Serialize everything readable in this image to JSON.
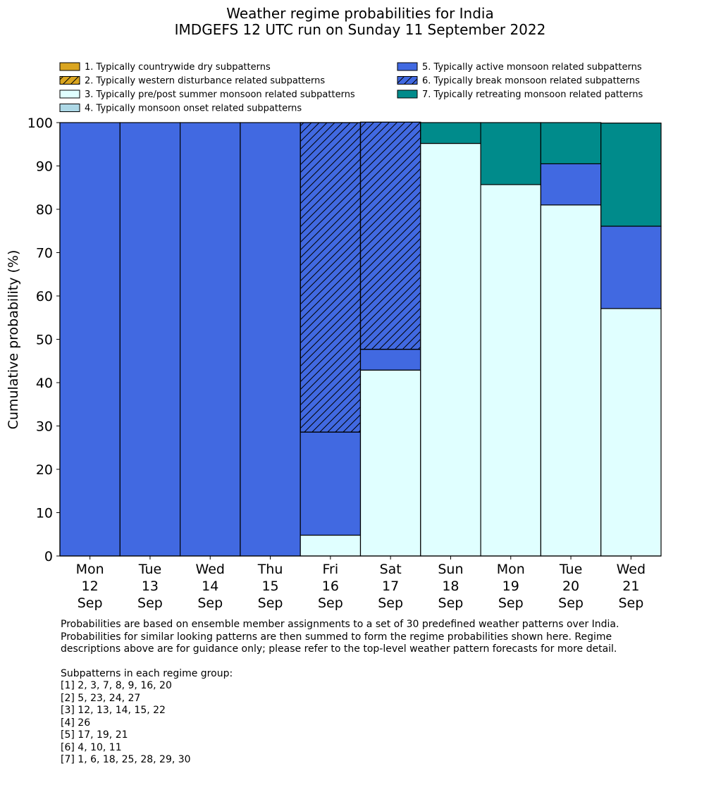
{
  "chart_data": {
    "type": "bar",
    "stacked": true,
    "title": "Weather regime probabilities for India",
    "subtitle": "IMDGEFS 12 UTC run on Sunday 11 September 2022",
    "xlabel": "",
    "ylabel": "Cumulative probability (%)",
    "ylim": [
      0,
      100
    ],
    "yticks": [
      0,
      10,
      20,
      30,
      40,
      50,
      60,
      70,
      80,
      90,
      100
    ],
    "categories": [
      [
        "Mon",
        "12",
        "Sep"
      ],
      [
        "Tue",
        "13",
        "Sep"
      ],
      [
        "Wed",
        "14",
        "Sep"
      ],
      [
        "Thu",
        "15",
        "Sep"
      ],
      [
        "Fri",
        "16",
        "Sep"
      ],
      [
        "Sat",
        "17",
        "Sep"
      ],
      [
        "Sun",
        "18",
        "Sep"
      ],
      [
        "Mon",
        "19",
        "Sep"
      ],
      [
        "Tue",
        "20",
        "Sep"
      ],
      [
        "Wed",
        "21",
        "Sep"
      ]
    ],
    "legend_position": "top",
    "series": [
      {
        "name": "1. Typically countrywide dry subpatterns",
        "color": "#DAA520",
        "hatch": false,
        "values": [
          0,
          0,
          0,
          0,
          0,
          0,
          0,
          0,
          0,
          0
        ]
      },
      {
        "name": "2. Typically western disturbance related subpatterns",
        "color": "#DAA520",
        "hatch": true,
        "values": [
          0,
          0,
          0,
          0,
          0,
          0,
          0,
          0,
          0,
          0
        ]
      },
      {
        "name": "3. Typically pre/post summer monsoon related subpatterns",
        "color": "#E0FFFF",
        "hatch": false,
        "values": [
          0,
          0,
          0,
          0,
          4.8,
          42.9,
          95.2,
          85.7,
          81.0,
          57.1
        ]
      },
      {
        "name": "4. Typically monsoon onset related subpatterns",
        "color": "#ADD8E6",
        "hatch": false,
        "values": [
          0,
          0,
          0,
          0,
          0,
          0,
          0,
          0,
          0,
          0
        ]
      },
      {
        "name": "5. Typically active monsoon related subpatterns",
        "color": "#4169E1",
        "hatch": false,
        "values": [
          100,
          100,
          100,
          100,
          23.8,
          4.8,
          0,
          0,
          9.5,
          19.0
        ]
      },
      {
        "name": "6. Typically break monsoon related subpatterns",
        "color": "#4169E1",
        "hatch": true,
        "values": [
          0,
          0,
          0,
          0,
          71.4,
          52.4,
          0,
          0,
          0,
          0
        ]
      },
      {
        "name": "7. Typically retreating monsoon related patterns",
        "color": "#008B8B",
        "hatch": false,
        "values": [
          0,
          0,
          0,
          0,
          0,
          0,
          4.8,
          14.3,
          9.5,
          23.8
        ]
      }
    ]
  },
  "notes": {
    "lines": [
      "Probabilities are based on ensemble member assignments to a set of 30 predefined weather patterns over India.",
      "Probabilities for similar looking patterns are then summed to form the regime probabilities shown here. Regime",
      "descriptions above are for guidance only; please refer to the top-level weather pattern forecasts for more detail."
    ],
    "groups_heading": "Subpatterns in each regime group:",
    "groups": [
      "[1] 2, 3, 7, 8, 9, 16, 20",
      "[2] 5, 23, 24, 27",
      "[3] 12, 13, 14, 15, 22",
      "[4] 26",
      "[5] 17, 19, 21",
      "[6] 4, 10, 11",
      "[7] 1, 6, 18, 25, 28, 29, 30"
    ]
  }
}
